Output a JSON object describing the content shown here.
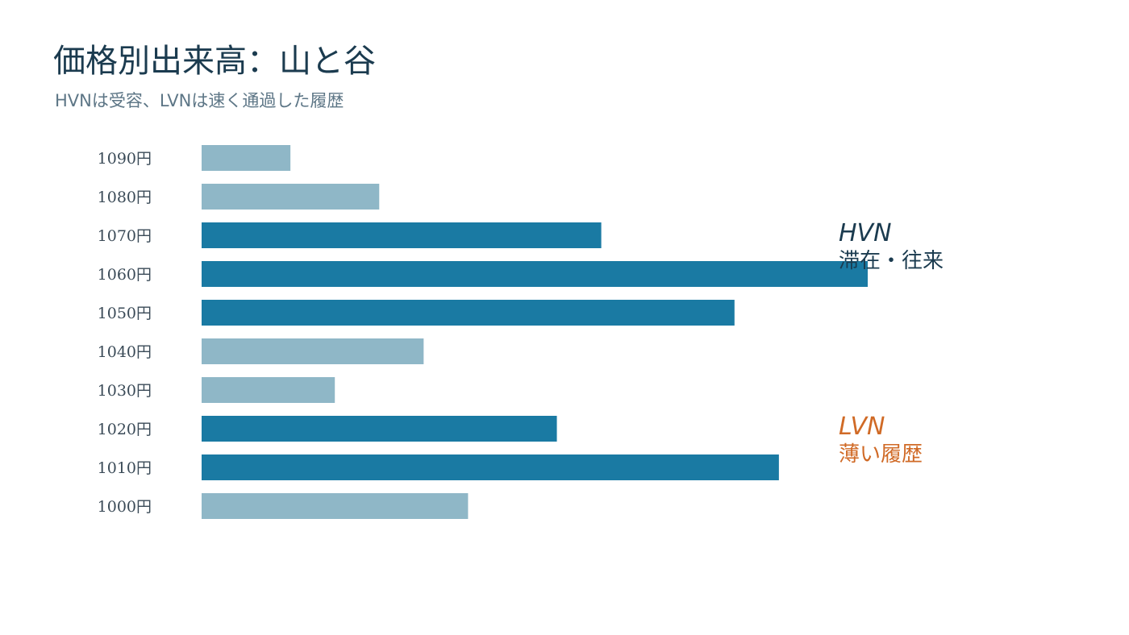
{
  "title": "価格別出来高：山と谷",
  "subtitle": "HVNは受容、LVNは速く通過した履歴",
  "colors": {
    "high_volume": "#1a7aa3",
    "low_volume": "#8fb7c7",
    "hvn_text": "#1b3b4f",
    "lvn_text": "#d06a26"
  },
  "annotations": {
    "hvn": {
      "name": "HVN",
      "description": "滞在・往来"
    },
    "lvn": {
      "name": "LVN",
      "description": "薄い履歴"
    }
  },
  "chart_data": {
    "type": "bar",
    "orientation": "horizontal",
    "categories": [
      "1090円",
      "1080円",
      "1070円",
      "1060円",
      "1050円",
      "1040円",
      "1030円",
      "1020円",
      "1010円",
      "1000円"
    ],
    "values": [
      20,
      40,
      90,
      150,
      120,
      50,
      30,
      80,
      130,
      60
    ],
    "highlight": [
      false,
      false,
      true,
      true,
      true,
      false,
      false,
      true,
      true,
      false
    ],
    "xlim": [
      0,
      150
    ],
    "grid": false,
    "xaxis_visible": false
  }
}
